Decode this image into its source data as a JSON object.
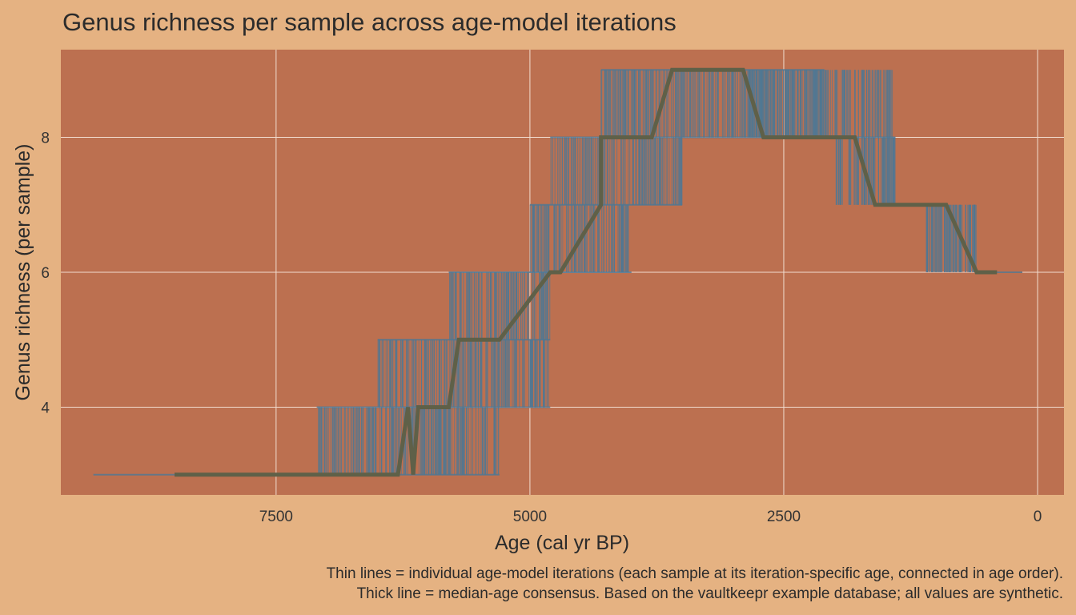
{
  "chart_data": {
    "type": "line",
    "title": "Genus richness per sample across age-model iterations",
    "xlabel": "Age (cal yr BP)",
    "ylabel": "Genus richness (per sample)",
    "x_reversed": true,
    "xlim": [
      9620,
      -260
    ],
    "ylim": [
      2.7,
      9.3
    ],
    "x_ticks": [
      7500,
      5000,
      2500,
      0
    ],
    "x_tick_labels": [
      "7500",
      "5000",
      "2500",
      "0"
    ],
    "y_ticks": [
      4,
      6,
      8
    ],
    "y_tick_labels": [
      "4",
      "6",
      "8"
    ],
    "grid": true,
    "consensus_series": {
      "x": [
        8500,
        6300,
        6200,
        6150,
        6100,
        5800,
        5700,
        5300,
        4800,
        4700,
        4300,
        4300,
        3800,
        3600,
        2900,
        2700,
        1800,
        1600,
        900,
        600,
        400
      ],
      "y": [
        3,
        3,
        4,
        3,
        4,
        4,
        5,
        5,
        6,
        6,
        7,
        8,
        8,
        9,
        9,
        8,
        8,
        7,
        7,
        6,
        6
      ]
    },
    "iteration_bands": [
      {
        "richness": 3,
        "x_min": 9300,
        "x_max": 5300
      },
      {
        "richness": 4,
        "x_min": 7100,
        "x_max": 4800
      },
      {
        "richness": 5,
        "x_min": 6500,
        "x_max": 4800
      },
      {
        "richness": 6,
        "x_min": 5800,
        "x_max": 4000
      },
      {
        "richness": 7,
        "x_min": 5000,
        "x_max": 3500
      },
      {
        "richness": 8,
        "x_min": 4800,
        "x_max": 1400
      },
      {
        "richness": 9,
        "x_min": 4300,
        "x_max": 2100
      }
    ],
    "colors": {
      "page_background": "#E5B282",
      "panel_background": "#BC7050",
      "iteration_lines": "#4F7894",
      "consensus_line": "#5F6048",
      "grid": "#F2DDD0"
    }
  },
  "caption": {
    "line1": "Thin lines = individual age-model iterations (each sample at its iteration-specific age, connected in age order).",
    "line2": "Thick line = median-age consensus. Based on the vaultkeepr example database; all values are synthetic."
  }
}
